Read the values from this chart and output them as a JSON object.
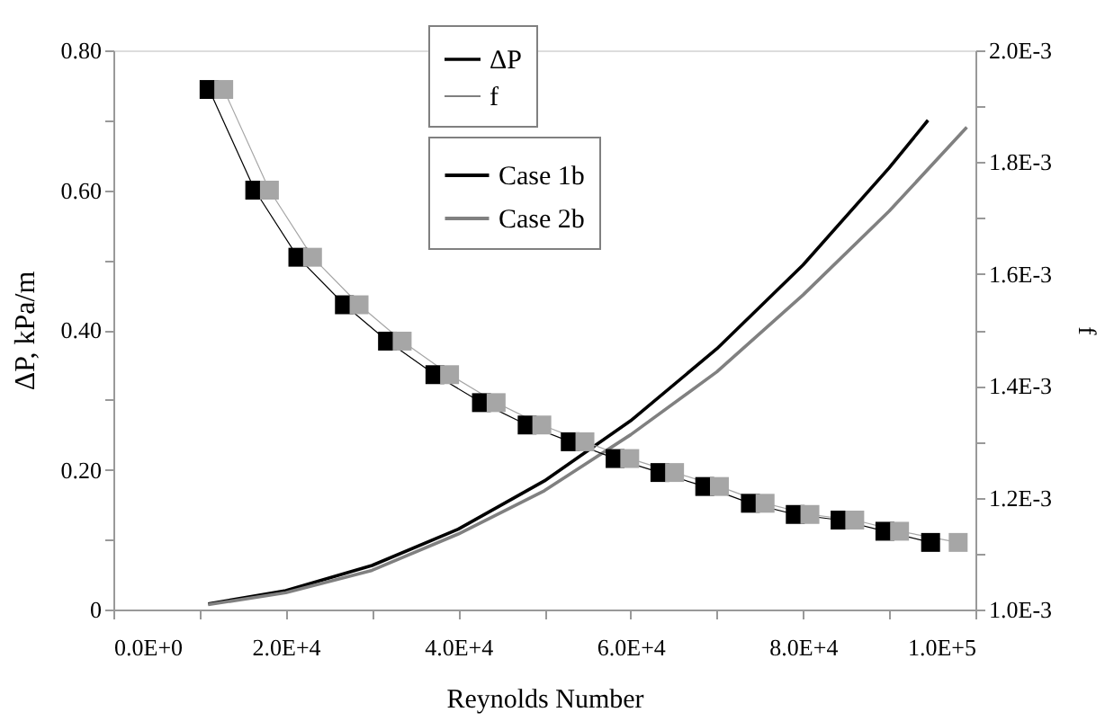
{
  "chart_data": {
    "type": "line",
    "xlabel": "Reynolds Number",
    "ylabel": "ΔP, kPa/m",
    "y2label": "f",
    "annotations": [
      "ΔP",
      "f"
    ],
    "xlim": [
      0,
      100000
    ],
    "xticks": [
      {
        "value": 0,
        "label": "0.0E+0"
      },
      {
        "value": 10000,
        "label": null
      },
      {
        "value": 20000,
        "label": "2.0E+4"
      },
      {
        "value": 30000,
        "label": null
      },
      {
        "value": 40000,
        "label": "4.0E+4"
      },
      {
        "value": 50000,
        "label": null
      },
      {
        "value": 60000,
        "label": "6.0E+4"
      },
      {
        "value": 70000,
        "label": null
      },
      {
        "value": 80000,
        "label": "8.0E+4"
      },
      {
        "value": 90000,
        "label": null
      },
      {
        "value": 100000,
        "label": "1.0E+5"
      }
    ],
    "ylim": [
      0,
      0.8
    ],
    "yticks": [
      {
        "value": 0,
        "label": "0"
      },
      {
        "value": 0.1,
        "label": null
      },
      {
        "value": 0.2,
        "label": "0.20"
      },
      {
        "value": 0.3,
        "label": null
      },
      {
        "value": 0.4,
        "label": "0.40"
      },
      {
        "value": 0.5,
        "label": null
      },
      {
        "value": 0.6,
        "label": "0.60"
      },
      {
        "value": 0.7,
        "label": null
      },
      {
        "value": 0.8,
        "label": "0.80"
      }
    ],
    "y2lim": [
      0.001,
      0.002
    ],
    "y2ticks": [
      {
        "value": 0.001,
        "label": "1.0E-3"
      },
      {
        "value": 0.0011,
        "label": null
      },
      {
        "value": 0.0012,
        "label": "1.2E-3"
      },
      {
        "value": 0.0013,
        "label": null
      },
      {
        "value": 0.0014,
        "label": "1.4E-3"
      },
      {
        "value": 0.0015,
        "label": null
      },
      {
        "value": 0.0016,
        "label": "1.6E-3"
      },
      {
        "value": 0.0017,
        "label": null
      },
      {
        "value": 0.0018,
        "label": "1.8E-3"
      },
      {
        "value": 0.0019,
        "label": null
      },
      {
        "value": 0.002,
        "label": "2.0E-3"
      }
    ],
    "grid": false,
    "legend": "top",
    "series": [
      {
        "name": "Case 1b",
        "color": "#000000",
        "type": "line",
        "x": [
          11000,
          20000,
          30000,
          40000,
          50000,
          60000,
          70000,
          80000,
          90000,
          94500
        ],
        "values": [
          0.008,
          0.027,
          0.063,
          0.115,
          0.184,
          0.27,
          0.373,
          0.493,
          0.632,
          0.7
        ]
      },
      {
        "name": "Case 2b",
        "color": "#808080",
        "type": "line",
        "x": [
          11000,
          20000,
          30000,
          40000,
          50000,
          60000,
          70000,
          80000,
          90000,
          99000
        ],
        "values": [
          0.007,
          0.024,
          0.056,
          0.108,
          0.17,
          0.25,
          0.34,
          0.45,
          0.57,
          0.69
        ]
      },
      {
        "color": "#000000",
        "type": "line",
        "axis": "y2",
        "marker": "square",
        "x": [
          11100,
          16400,
          21400,
          26800,
          31800,
          37300,
          42700,
          48000,
          53000,
          58200,
          63400,
          68600,
          73900,
          79100,
          84300,
          89500,
          94800
        ],
        "values": [
          0.00193,
          0.00175,
          0.00163,
          0.001545,
          0.00148,
          0.00142,
          0.00137,
          0.00133,
          0.0013,
          0.00127,
          0.001245,
          0.00122,
          0.00119,
          0.00117,
          0.00116,
          0.00114,
          0.00112
        ]
      },
      {
        "color": "#a6a6a6",
        "type": "line",
        "axis": "y2",
        "marker": "square",
        "x": [
          12800,
          18100,
          23100,
          28500,
          33500,
          39000,
          44400,
          49700,
          54700,
          59900,
          65100,
          70300,
          75600,
          80800,
          86000,
          91200,
          98000
        ],
        "values": [
          0.00193,
          0.00175,
          0.00163,
          0.001545,
          0.00148,
          0.00142,
          0.00137,
          0.00133,
          0.0013,
          0.00127,
          0.001245,
          0.00122,
          0.00119,
          0.00117,
          0.00116,
          0.00114,
          0.00112
        ]
      }
    ]
  }
}
